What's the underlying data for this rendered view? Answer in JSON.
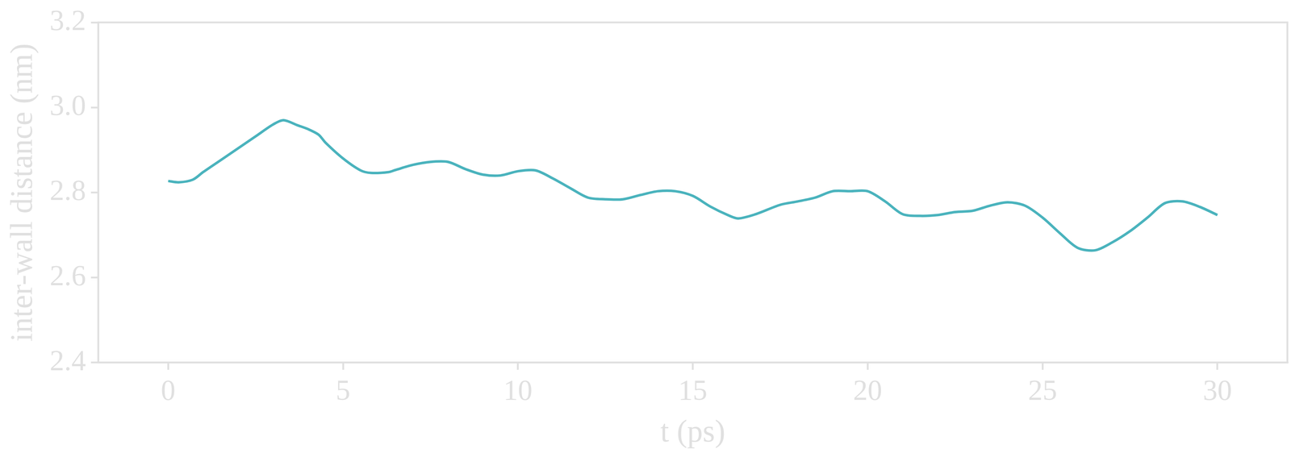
{
  "chart_data": {
    "type": "line",
    "x_label": "t (ps)",
    "y_label": "inter-wall distance (nm)",
    "color": "#4ab3bd",
    "grid": false,
    "xlim": [
      -2,
      32
    ],
    "xticks": [
      0,
      5,
      10,
      15,
      20,
      25,
      30
    ],
    "ylim": [
      2.4,
      3.2
    ],
    "yticks": [
      2.4,
      2.6,
      2.8,
      {
        "value": 3,
        "label": "3.0"
      },
      3.2
    ],
    "x": [
      0,
      0.3,
      0.7,
      1.0,
      1.5,
      2.0,
      2.5,
      3.0,
      3.3,
      3.7,
      4.0,
      4.3,
      4.5,
      5.0,
      5.5,
      5.8,
      6.3,
      6.5,
      7.0,
      7.5,
      8.0,
      8.5,
      9.0,
      9.5,
      10.0,
      10.5,
      11.0,
      11.5,
      12.0,
      12.5,
      13.0,
      13.5,
      14.0,
      14.5,
      15.0,
      15.5,
      16.0,
      16.3,
      16.8,
      17.5,
      18.0,
      18.5,
      19.0,
      19.5,
      20.0,
      20.5,
      21.0,
      21.5,
      22.0,
      22.5,
      23.0,
      23.5,
      24.0,
      24.5,
      25.0,
      25.5,
      26.0,
      26.5,
      27.0,
      27.5,
      28.0,
      28.5,
      29.0,
      29.5,
      30.0
    ],
    "values": [
      2.827,
      2.824,
      2.83,
      2.848,
      2.876,
      2.904,
      2.932,
      2.96,
      2.97,
      2.958,
      2.949,
      2.936,
      2.917,
      2.88,
      2.852,
      2.846,
      2.848,
      2.853,
      2.865,
      2.872,
      2.872,
      2.855,
      2.842,
      2.84,
      2.85,
      2.852,
      2.833,
      2.81,
      2.788,
      2.784,
      2.784,
      2.794,
      2.803,
      2.803,
      2.792,
      2.767,
      2.747,
      2.739,
      2.749,
      2.771,
      2.779,
      2.788,
      2.803,
      2.803,
      2.803,
      2.779,
      2.749,
      2.745,
      2.747,
      2.754,
      2.757,
      2.769,
      2.777,
      2.769,
      2.741,
      2.704,
      2.67,
      2.664,
      2.683,
      2.709,
      2.741,
      2.775,
      2.779,
      2.766,
      2.747
    ]
  }
}
